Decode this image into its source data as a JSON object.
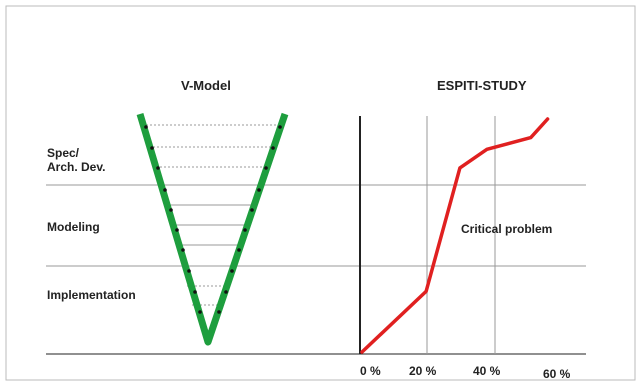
{
  "vmodel": {
    "title": "V-Model",
    "phases": {
      "spec_line1": "Spec/",
      "spec_line2": "Arch. Dev.",
      "modeling": "Modeling",
      "implementation": "Implementation"
    }
  },
  "study": {
    "title": "ESPITI-STUDY",
    "annotation": "Critical problem",
    "x_ticks": [
      "0 %",
      "20 %",
      "40 %",
      "60 %"
    ]
  },
  "colors": {
    "v_stroke": "#1e9e3e",
    "v_dots": "#111111",
    "curve": "#e02020",
    "grid": "#999999",
    "axis": "#222222",
    "frame": "#bbbbbb"
  },
  "chart_data": {
    "type": "line",
    "title": "ESPITI-STUDY",
    "xlabel": "",
    "ylabel": "",
    "x_ticks": [
      "0 %",
      "20 %",
      "40 %",
      "60 %"
    ],
    "xlim": [
      0,
      60
    ],
    "series": [
      {
        "x": [
          0,
          19,
          29,
          37,
          50,
          55
        ],
        "y": [
          0,
          0.26,
          0.79,
          0.87,
          0.92,
          1.0
        ]
      }
    ]
  }
}
